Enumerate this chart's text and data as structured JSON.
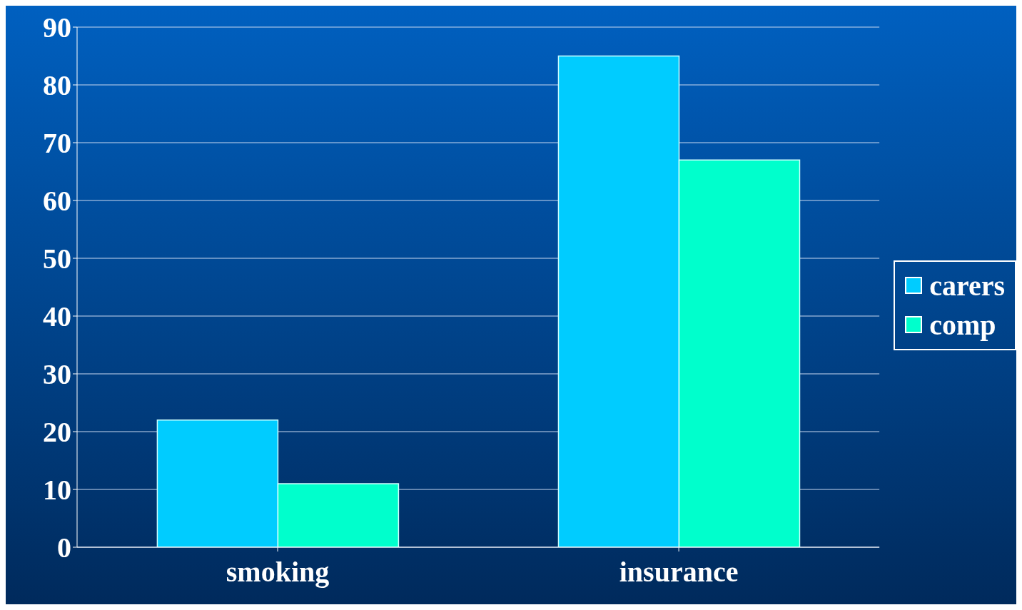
{
  "chart_data": {
    "type": "bar",
    "categories": [
      "smoking",
      "insurance"
    ],
    "series": [
      {
        "name": "carers",
        "color": "#00ccff",
        "values": [
          22,
          85
        ]
      },
      {
        "name": "comp",
        "color": "#00ffcc",
        "values": [
          11,
          67
        ]
      }
    ],
    "ylim": [
      0,
      90
    ],
    "yticks": [
      0,
      10,
      20,
      30,
      40,
      50,
      60,
      70,
      80,
      90
    ],
    "grid": "y",
    "legend": "right"
  }
}
